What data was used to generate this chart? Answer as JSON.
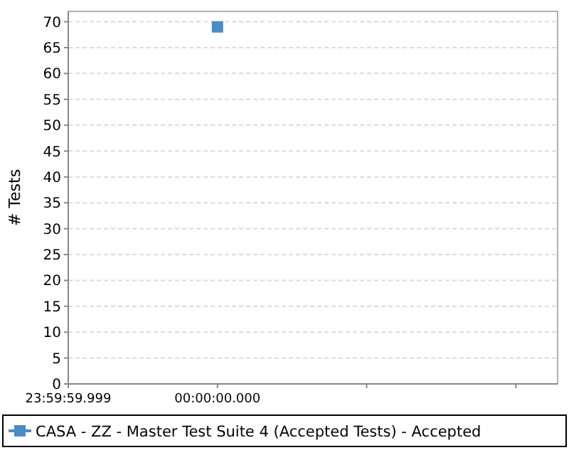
{
  "chart_data": {
    "type": "line",
    "ylabel": "# Tests",
    "categories": [
      "23:59:59.999",
      "00:00:00.000",
      null,
      null
    ],
    "series": [
      {
        "name": "CASA - ZZ - Master Test Suite 4 (Accepted Tests) - Accepted",
        "color": "#4a8cc6",
        "values": [
          null,
          69,
          null,
          null
        ]
      }
    ],
    "ylim": [
      0,
      72
    ],
    "yticks": [
      0,
      5,
      10,
      15,
      20,
      25,
      30,
      35,
      40,
      45,
      50,
      55,
      60,
      65,
      70
    ],
    "grid": "y",
    "marker": "square",
    "legend": "bottom"
  }
}
